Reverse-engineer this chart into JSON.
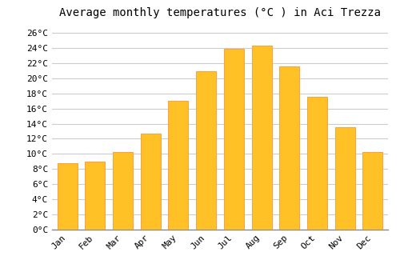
{
  "title": "Average monthly temperatures (°C ) in Aci Trezza",
  "months": [
    "Jan",
    "Feb",
    "Mar",
    "Apr",
    "May",
    "Jun",
    "Jul",
    "Aug",
    "Sep",
    "Oct",
    "Nov",
    "Dec"
  ],
  "temperatures": [
    8.8,
    9.0,
    10.3,
    12.7,
    17.0,
    20.9,
    23.9,
    24.3,
    21.6,
    17.5,
    13.5,
    10.3
  ],
  "bar_color": "#FFC125",
  "bar_edge_color": "#FFA040",
  "background_color": "#FFFFFF",
  "grid_color": "#CCCCCC",
  "ylim": [
    0,
    27
  ],
  "ytick_step": 2,
  "title_fontsize": 10,
  "tick_fontsize": 8,
  "font_family": "monospace"
}
